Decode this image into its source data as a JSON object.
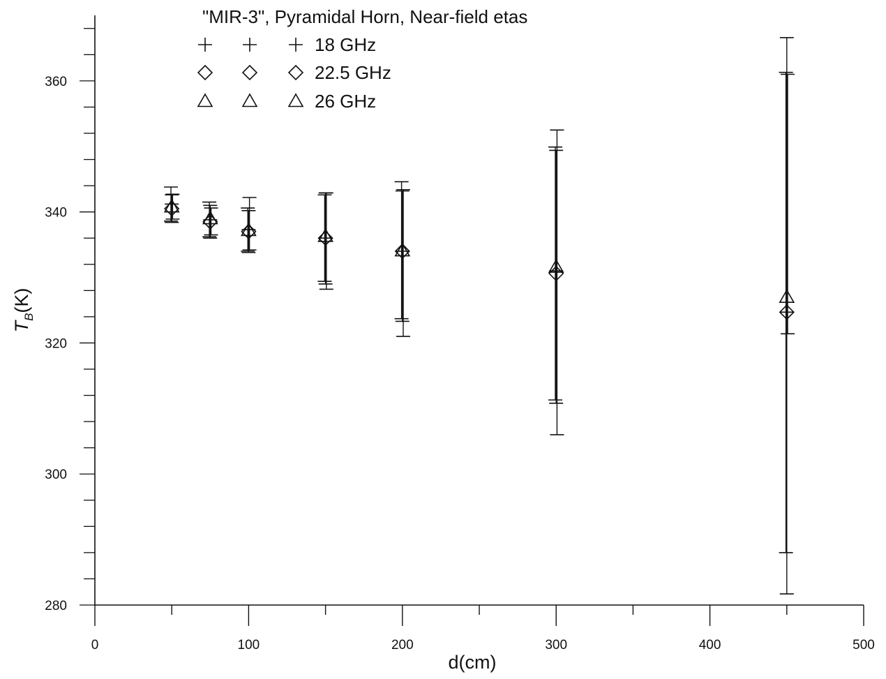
{
  "chart_data": {
    "type": "scatter",
    "title": "\"MIR-3\", Pyramidal Horn, Near-field etas",
    "xlabel": "d(cm)",
    "ylabel_main": "T",
    "ylabel_sub": "B",
    "ylabel_unit": "(K)",
    "xlim": [
      0,
      500
    ],
    "ylim": [
      280,
      370
    ],
    "xticks": [
      0,
      100,
      200,
      300,
      400,
      500
    ],
    "yticks": [
      280,
      300,
      320,
      340,
      360
    ],
    "grid": false,
    "legend_position": "top-left",
    "series": [
      {
        "name": "18 GHz",
        "marker": "plus",
        "points": [
          {
            "x": 50,
            "y": 341.2,
            "low": 338.6,
            "high": 343.8
          },
          {
            "x": 75,
            "y": 338.8,
            "low": 336.2,
            "high": 341.5
          },
          {
            "x": 100,
            "y": 337.3,
            "low": 334.0,
            "high": 340.6
          },
          {
            "x": 150,
            "y": 336.0,
            "low": 329.4,
            "high": 342.6
          },
          {
            "x": 200,
            "y": 334.0,
            "low": 323.7,
            "high": 344.6
          },
          {
            "x": 300,
            "y": 331.0,
            "low": 311.3,
            "high": 349.9
          },
          {
            "x": 450,
            "y": 324.7,
            "low": 288.0,
            "high": 361.3
          }
        ]
      },
      {
        "name": "22.5 GHz",
        "marker": "diamond",
        "points": [
          {
            "x": 50,
            "y": 340.5,
            "low": 338.4,
            "high": 342.6
          },
          {
            "x": 75,
            "y": 338.5,
            "low": 336.0,
            "high": 341.0
          },
          {
            "x": 100,
            "y": 337.0,
            "low": 333.8,
            "high": 340.2
          },
          {
            "x": 150,
            "y": 336.0,
            "low": 329.0,
            "high": 342.9
          },
          {
            "x": 200,
            "y": 334.0,
            "low": 323.3,
            "high": 343.2
          },
          {
            "x": 300,
            "y": 330.6,
            "low": 310.8,
            "high": 349.4
          },
          {
            "x": 450,
            "y": 324.7,
            "low": 281.7,
            "high": 366.6
          }
        ]
      },
      {
        "name": "26 GHz",
        "marker": "triangle",
        "points": [
          {
            "x": 50,
            "y": 340.8,
            "low": 338.9,
            "high": 342.7
          },
          {
            "x": 75,
            "y": 339.0,
            "low": 336.5,
            "high": 340.6
          },
          {
            "x": 100,
            "y": 337.2,
            "low": 334.2,
            "high": 342.2
          },
          {
            "x": 150,
            "y": 336.3,
            "low": 328.2,
            "high": 342.9
          },
          {
            "x": 200,
            "y": 334.1,
            "low": 321.0,
            "high": 343.4
          },
          {
            "x": 300,
            "y": 331.6,
            "low": 306.0,
            "high": 352.5
          },
          {
            "x": 450,
            "y": 327.0,
            "low": 321.4,
            "high": 361.0
          }
        ]
      }
    ]
  }
}
